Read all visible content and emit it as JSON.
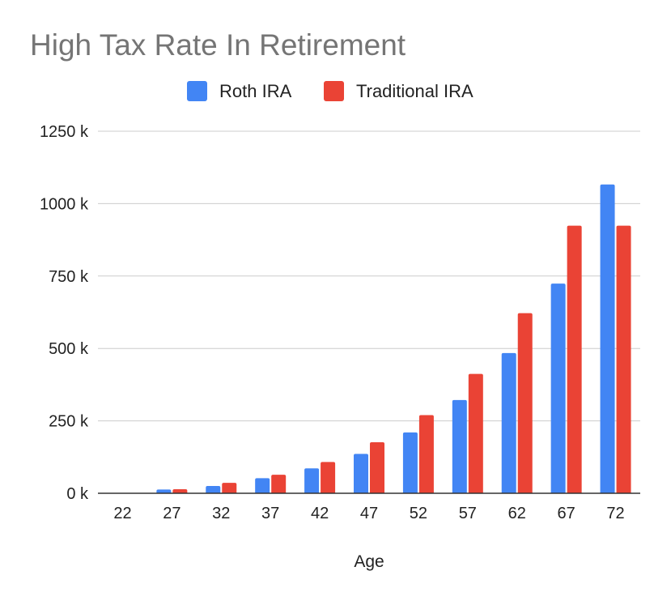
{
  "chart_data": {
    "type": "bar",
    "title": "High Tax Rate In Retirement",
    "xlabel": "Age",
    "ylabel": "",
    "categories": [
      "22",
      "27",
      "32",
      "37",
      "42",
      "47",
      "52",
      "57",
      "62",
      "67",
      "72"
    ],
    "series": [
      {
        "name": "Roth IRA",
        "color": "#4285f4",
        "values": [
          0,
          13,
          25,
          52,
          86,
          136,
          210,
          322,
          484,
          724,
          1066
        ]
      },
      {
        "name": "Traditional IRA",
        "color": "#ea4335",
        "values": [
          0,
          14,
          36,
          64,
          108,
          176,
          270,
          412,
          622,
          924,
          924
        ]
      }
    ],
    "ylim": [
      0,
      1250
    ],
    "yticks": [
      {
        "value": 0,
        "label": "0 k"
      },
      {
        "value": 250,
        "label": "250 k"
      },
      {
        "value": 500,
        "label": "500 k"
      },
      {
        "value": 750,
        "label": "750 k"
      },
      {
        "value": 1000,
        "label": "1000 k"
      },
      {
        "value": 1250,
        "label": "1250 k"
      }
    ],
    "grid": true,
    "legend_position": "top-center"
  }
}
